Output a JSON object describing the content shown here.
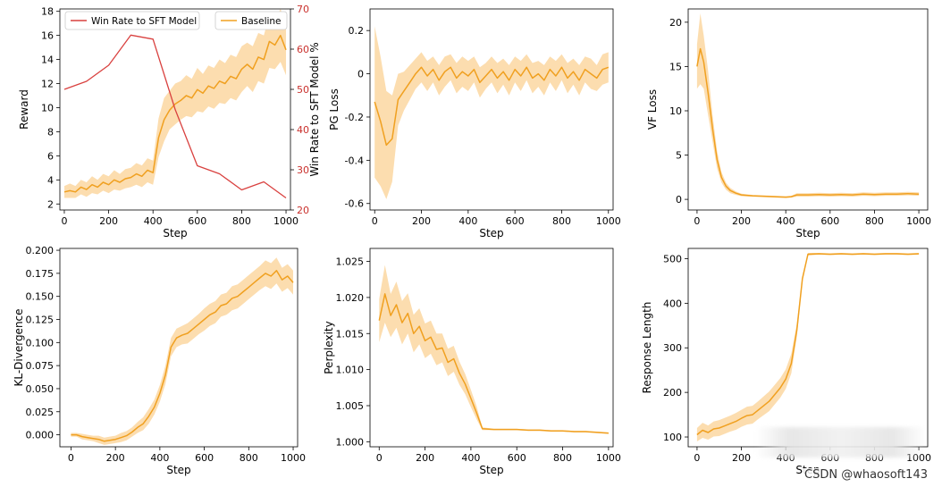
{
  "colors": {
    "baseline": "#f0a020",
    "band": "#fbd7a1",
    "winrate": "#d9413f",
    "secondary_axis": "#c9302c",
    "axis": "#000000"
  },
  "watermark": "CSDN @whaosoft143",
  "chart_data": [
    {
      "type": "line",
      "panel": "reward",
      "xlabel": "Step",
      "ylabel": "Reward",
      "xlim": [
        -20,
        1020
      ],
      "ylim": [
        1.5,
        18.2
      ],
      "xticks": [
        0,
        200,
        400,
        600,
        800,
        1000
      ],
      "yticks": [
        2,
        4,
        6,
        8,
        10,
        12,
        14,
        16,
        18
      ],
      "secondary_axis": {
        "ylabel": "Win Rate to SFT Model %",
        "ylim": [
          20,
          70
        ],
        "yticks": [
          20,
          30,
          40,
          50,
          60,
          70
        ]
      },
      "legend": {
        "position": "top",
        "entries": [
          "Win Rate to SFT Model",
          "Baseline"
        ]
      },
      "series": [
        {
          "name": "Baseline",
          "x": [
            0,
            25,
            50,
            75,
            100,
            125,
            150,
            175,
            200,
            225,
            250,
            275,
            300,
            325,
            350,
            375,
            400,
            425,
            450,
            475,
            500,
            525,
            550,
            575,
            600,
            625,
            650,
            675,
            700,
            725,
            750,
            775,
            800,
            825,
            850,
            875,
            900,
            925,
            950,
            975,
            1000
          ],
          "values": [
            3.0,
            3.1,
            3.0,
            3.4,
            3.2,
            3.6,
            3.4,
            3.8,
            3.6,
            4.0,
            3.8,
            4.1,
            4.2,
            4.5,
            4.3,
            4.8,
            4.6,
            7.5,
            9.0,
            9.8,
            10.3,
            10.6,
            11.0,
            10.8,
            11.5,
            11.2,
            11.8,
            11.6,
            12.2,
            12.0,
            12.6,
            12.4,
            13.2,
            13.6,
            13.2,
            14.2,
            14.0,
            15.5,
            15.2,
            16.0,
            14.8
          ],
          "band": [
            0.5,
            0.6,
            0.5,
            0.6,
            0.6,
            0.7,
            0.6,
            0.7,
            0.7,
            0.8,
            0.7,
            0.8,
            0.8,
            0.9,
            0.9,
            1.0,
            1.0,
            1.6,
            1.8,
            1.6,
            1.7,
            1.6,
            1.7,
            1.6,
            1.8,
            1.6,
            1.7,
            1.7,
            1.8,
            1.7,
            1.8,
            1.8,
            1.9,
            1.8,
            1.9,
            2.0,
            2.0,
            2.2,
            2.0,
            2.2,
            2.1
          ]
        },
        {
          "name": "Win Rate to SFT Model",
          "axis": "secondary",
          "x": [
            0,
            100,
            200,
            300,
            400,
            500,
            600,
            700,
            800,
            900,
            1000
          ],
          "values": [
            50.0,
            52.0,
            56.0,
            63.5,
            62.5,
            45.0,
            31.0,
            29.0,
            25.0,
            27.0,
            23.0
          ]
        }
      ]
    },
    {
      "type": "line",
      "panel": "pg_loss",
      "xlabel": "Step",
      "ylabel": "PG Loss",
      "xlim": [
        -20,
        1020
      ],
      "ylim": [
        -0.63,
        0.3
      ],
      "xticks": [
        0,
        200,
        400,
        600,
        800,
        1000
      ],
      "yticks": [
        0.2,
        0.0,
        -0.2,
        -0.4,
        -0.6
      ],
      "series": [
        {
          "name": "Baseline",
          "x": [
            0,
            25,
            50,
            75,
            100,
            125,
            150,
            175,
            200,
            225,
            250,
            275,
            300,
            325,
            350,
            375,
            400,
            425,
            450,
            475,
            500,
            525,
            550,
            575,
            600,
            625,
            650,
            675,
            700,
            725,
            750,
            775,
            800,
            825,
            850,
            875,
            900,
            925,
            950,
            975,
            1000
          ],
          "values": [
            -0.13,
            -0.22,
            -0.33,
            -0.3,
            -0.12,
            -0.08,
            -0.04,
            0.0,
            0.03,
            -0.01,
            0.02,
            -0.03,
            0.01,
            0.03,
            -0.02,
            0.01,
            -0.01,
            0.02,
            -0.04,
            -0.01,
            0.02,
            -0.02,
            0.01,
            -0.03,
            0.02,
            -0.01,
            0.03,
            -0.02,
            0.0,
            -0.03,
            0.02,
            -0.01,
            0.03,
            -0.02,
            0.01,
            -0.03,
            0.02,
            0.0,
            -0.02,
            0.02,
            0.03
          ],
          "band": [
            0.35,
            0.3,
            0.25,
            0.2,
            0.12,
            0.09,
            0.08,
            0.07,
            0.07,
            0.07,
            0.06,
            0.07,
            0.07,
            0.06,
            0.07,
            0.07,
            0.07,
            0.06,
            0.07,
            0.06,
            0.06,
            0.07,
            0.06,
            0.07,
            0.06,
            0.07,
            0.06,
            0.07,
            0.06,
            0.07,
            0.06,
            0.07,
            0.06,
            0.07,
            0.06,
            0.07,
            0.06,
            0.07,
            0.06,
            0.07,
            0.07
          ]
        }
      ]
    },
    {
      "type": "line",
      "panel": "vf_loss",
      "xlabel": "Step",
      "ylabel": "VF Loss",
      "xlim": [
        -40,
        1040
      ],
      "ylim": [
        -1.2,
        21.5
      ],
      "xticks": [
        0,
        200,
        400,
        600,
        800,
        1000
      ],
      "yticks": [
        0,
        5,
        10,
        15,
        20
      ],
      "series": [
        {
          "name": "Baseline",
          "x": [
            0,
            15,
            30,
            50,
            70,
            90,
            110,
            130,
            150,
            175,
            200,
            250,
            300,
            350,
            400,
            425,
            450,
            500,
            550,
            600,
            650,
            700,
            750,
            800,
            850,
            900,
            950,
            1000
          ],
          "values": [
            15.0,
            17.0,
            15.5,
            12.0,
            8.0,
            4.5,
            2.5,
            1.5,
            1.0,
            0.7,
            0.5,
            0.4,
            0.35,
            0.3,
            0.25,
            0.3,
            0.5,
            0.5,
            0.55,
            0.5,
            0.55,
            0.5,
            0.6,
            0.55,
            0.6,
            0.6,
            0.65,
            0.6
          ],
          "band": [
            2.5,
            4.0,
            3.0,
            2.5,
            1.5,
            1.0,
            0.6,
            0.4,
            0.3,
            0.2,
            0.15,
            0.1,
            0.1,
            0.1,
            0.1,
            0.1,
            0.2,
            0.2,
            0.2,
            0.2,
            0.2,
            0.2,
            0.2,
            0.2,
            0.2,
            0.2,
            0.2,
            0.2
          ]
        }
      ]
    },
    {
      "type": "line",
      "panel": "kl_divergence",
      "xlabel": "Step",
      "ylabel": "KL-Divergence",
      "xlim": [
        -50,
        1020
      ],
      "ylim": [
        -0.013,
        0.202
      ],
      "xticks": [
        0,
        200,
        400,
        600,
        800,
        1000
      ],
      "yticks": [
        0.0,
        0.025,
        0.05,
        0.075,
        0.1,
        0.125,
        0.15,
        0.175,
        0.2
      ],
      "ytick_labels": [
        "0.000",
        "0.025",
        "0.050",
        "0.075",
        "0.100",
        "0.125",
        "0.150",
        "0.175",
        "0.200"
      ],
      "series": [
        {
          "name": "Baseline",
          "x": [
            0,
            25,
            50,
            75,
            100,
            125,
            150,
            175,
            200,
            225,
            250,
            275,
            300,
            325,
            350,
            375,
            400,
            425,
            450,
            475,
            500,
            525,
            550,
            575,
            600,
            625,
            650,
            675,
            700,
            725,
            750,
            775,
            800,
            825,
            850,
            875,
            900,
            925,
            950,
            975,
            1000
          ],
          "values": [
            0.0,
            0.0,
            -0.002,
            -0.003,
            -0.004,
            -0.005,
            -0.007,
            -0.006,
            -0.005,
            -0.003,
            -0.001,
            0.003,
            0.008,
            0.012,
            0.02,
            0.03,
            0.045,
            0.065,
            0.095,
            0.105,
            0.108,
            0.11,
            0.115,
            0.12,
            0.125,
            0.13,
            0.133,
            0.14,
            0.142,
            0.148,
            0.15,
            0.155,
            0.16,
            0.165,
            0.17,
            0.175,
            0.172,
            0.178,
            0.168,
            0.172,
            0.165
          ],
          "band": [
            0.002,
            0.002,
            0.003,
            0.003,
            0.003,
            0.004,
            0.004,
            0.004,
            0.004,
            0.005,
            0.005,
            0.005,
            0.006,
            0.007,
            0.008,
            0.008,
            0.009,
            0.01,
            0.01,
            0.01,
            0.01,
            0.011,
            0.011,
            0.011,
            0.012,
            0.012,
            0.012,
            0.012,
            0.012,
            0.013,
            0.013,
            0.013,
            0.013,
            0.013,
            0.013,
            0.014,
            0.014,
            0.014,
            0.013,
            0.013,
            0.013
          ]
        }
      ]
    },
    {
      "type": "line",
      "panel": "perplexity",
      "xlabel": "Step",
      "ylabel": "Perplexity",
      "xlim": [
        -40,
        1020
      ],
      "ylim": [
        0.9993,
        1.0268
      ],
      "xticks": [
        0,
        200,
        400,
        600,
        800,
        1000
      ],
      "yticks": [
        1.0,
        1.005,
        1.01,
        1.015,
        1.02,
        1.025
      ],
      "ytick_labels": [
        "1.000",
        "1.005",
        "1.010",
        "1.015",
        "1.020",
        "1.025"
      ],
      "series": [
        {
          "name": "Baseline",
          "x": [
            0,
            25,
            50,
            75,
            100,
            125,
            150,
            175,
            200,
            225,
            250,
            275,
            300,
            325,
            350,
            375,
            400,
            425,
            450,
            500,
            550,
            600,
            650,
            700,
            750,
            800,
            850,
            900,
            950,
            1000
          ],
          "values": [
            1.0168,
            1.0205,
            1.0175,
            1.019,
            1.0165,
            1.0178,
            1.015,
            1.016,
            1.014,
            1.0145,
            1.0128,
            1.013,
            1.011,
            1.0115,
            1.0095,
            1.008,
            1.006,
            1.004,
            1.0018,
            1.0017,
            1.0017,
            1.0017,
            1.0016,
            1.0016,
            1.0015,
            1.0015,
            1.0014,
            1.0014,
            1.0013,
            1.0012
          ],
          "band": [
            0.003,
            0.004,
            0.003,
            0.0032,
            0.003,
            0.0028,
            0.0026,
            0.0025,
            0.0024,
            0.0023,
            0.0022,
            0.002,
            0.0019,
            0.0018,
            0.0016,
            0.0014,
            0.0012,
            0.0009,
            0.0002,
            0.0001,
            0.0001,
            0.0001,
            0.0001,
            0.0001,
            0.0001,
            0.0001,
            0.0001,
            0.0001,
            0.0001,
            0.0001
          ]
        }
      ]
    },
    {
      "type": "line",
      "panel": "response_length",
      "xlabel": "Step",
      "ylabel": "Response Length",
      "xlim": [
        -40,
        1040
      ],
      "ylim": [
        78,
        523
      ],
      "xticks": [
        0,
        200,
        400,
        600,
        800,
        1000
      ],
      "yticks": [
        100,
        200,
        300,
        400,
        500
      ],
      "series": [
        {
          "name": "Baseline",
          "x": [
            0,
            25,
            50,
            75,
            100,
            125,
            150,
            175,
            200,
            225,
            250,
            275,
            300,
            325,
            350,
            375,
            400,
            425,
            450,
            475,
            500,
            550,
            600,
            650,
            700,
            750,
            800,
            850,
            900,
            950,
            1000
          ],
          "values": [
            105,
            115,
            110,
            118,
            120,
            125,
            130,
            135,
            142,
            148,
            150,
            160,
            170,
            180,
            195,
            210,
            230,
            265,
            340,
            455,
            510,
            511,
            510,
            511,
            510,
            511,
            510,
            511,
            511,
            510,
            511
          ],
          "band": [
            15,
            17,
            16,
            17,
            18,
            18,
            18,
            19,
            19,
            20,
            20,
            20,
            21,
            22,
            22,
            22,
            22,
            22,
            15,
            6,
            3,
            2,
            2,
            2,
            2,
            2,
            2,
            2,
            2,
            2,
            2
          ]
        }
      ]
    }
  ]
}
